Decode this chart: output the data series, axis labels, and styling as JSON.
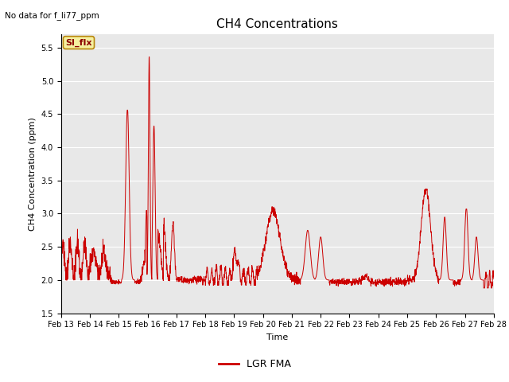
{
  "title": "CH4 Concentrations",
  "xlabel": "Time",
  "ylabel": "CH4 Concentration (ppm)",
  "top_left_text": "No data for f_li77_ppm",
  "annotation_box_text": "SI_flx",
  "legend_label": "LGR FMA",
  "line_color": "#cc0000",
  "background_color": "#e8e8e8",
  "fig_background": "#ffffff",
  "ylim": [
    1.5,
    5.7
  ],
  "yticks": [
    1.5,
    2.0,
    2.5,
    3.0,
    3.5,
    4.0,
    4.5,
    5.0,
    5.5
  ],
  "x_tick_labels": [
    "Feb 13",
    "Feb 14",
    "Feb 15",
    "Feb 16",
    "Feb 17",
    "Feb 18",
    "Feb 19",
    "Feb 20",
    "Feb 21",
    "Feb 22",
    "Feb 23",
    "Feb 24",
    "Feb 25",
    "Feb 26",
    "Feb 27",
    "Feb 28"
  ],
  "num_days": 16,
  "start_day": 13,
  "title_fontsize": 11,
  "label_fontsize": 8,
  "tick_fontsize": 7,
  "legend_fontsize": 9
}
